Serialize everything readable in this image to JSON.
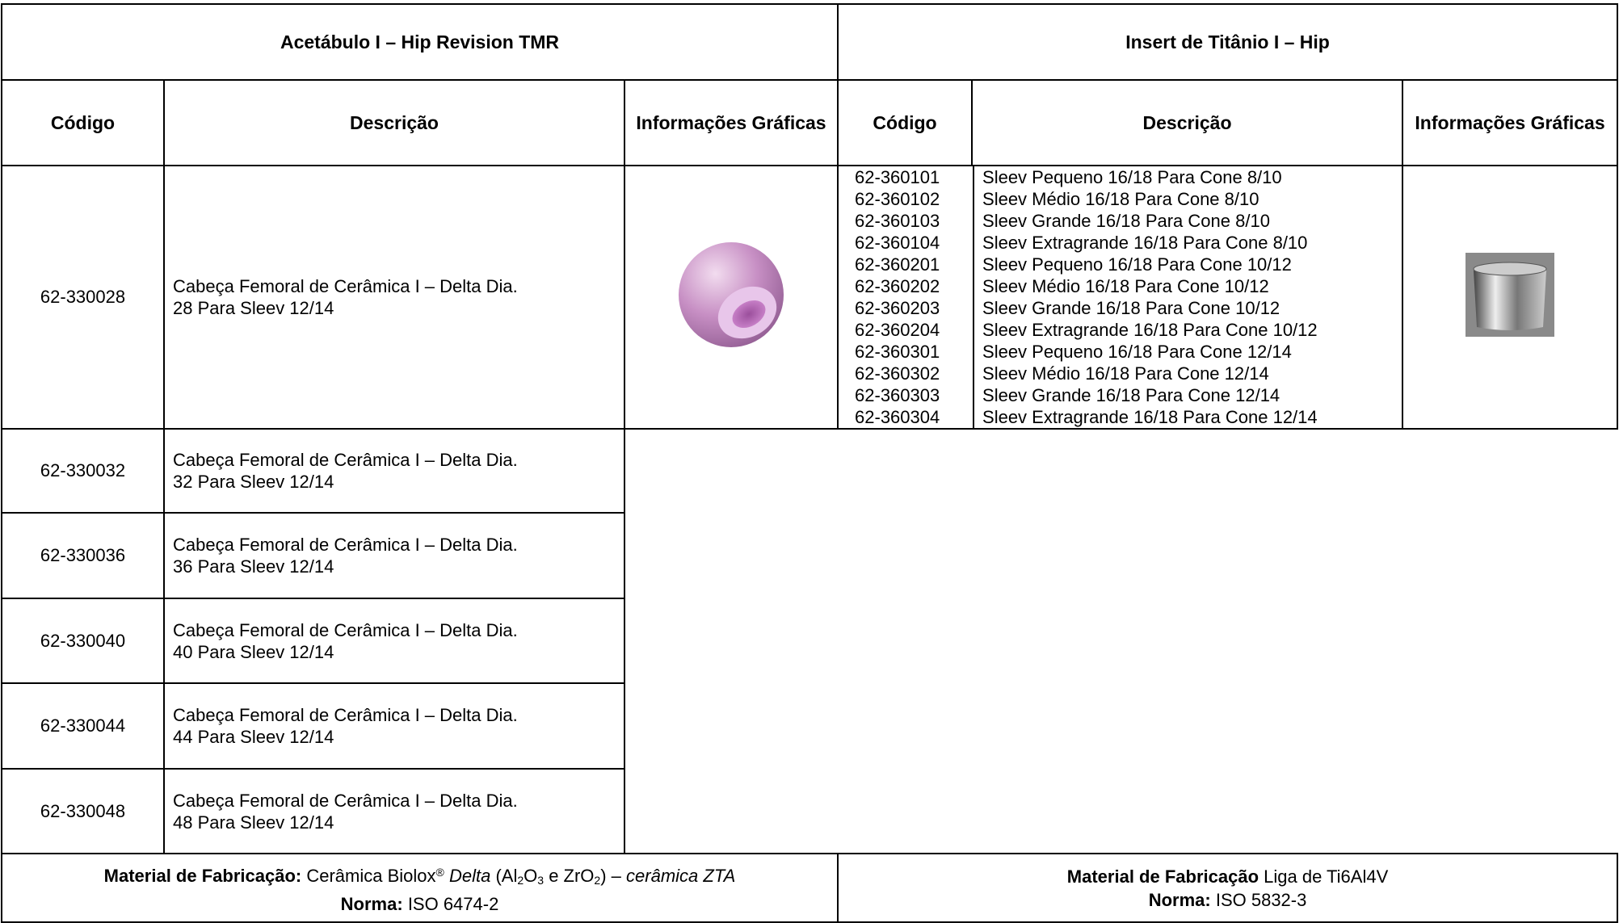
{
  "left": {
    "title": "Acetábulo I – Hip Revision TMR",
    "headers": [
      "Código",
      "Descrição",
      "Informações Gráficas"
    ],
    "rows": [
      {
        "code": "62-330028",
        "desc": [
          "Cabeça Femoral de Cerâmica I – Delta Dia.",
          "28 Para Sleev 12/14"
        ]
      },
      {
        "code": "62-330032",
        "desc": [
          "Cabeça Femoral de Cerâmica I – Delta Dia.",
          "32 Para Sleev 12/14"
        ]
      },
      {
        "code": "62-330036",
        "desc": [
          "Cabeça Femoral de Cerâmica I – Delta Dia.",
          "36 Para Sleev 12/14"
        ]
      },
      {
        "code": "62-330040",
        "desc": [
          "Cabeça Femoral de Cerâmica I – Delta Dia.",
          "40 Para Sleev 12/14"
        ]
      },
      {
        "code": "62-330044",
        "desc": [
          "Cabeça Femoral de Cerâmica I – Delta Dia.",
          "44 Para Sleev 12/14"
        ]
      },
      {
        "code": "62-330048",
        "desc": [
          "Cabeça Femoral de Cerâmica I – Delta Dia.",
          "48 Para Sleev 12/14"
        ]
      }
    ],
    "footer": {
      "material_label": "Material de Fabricação:",
      "parts": [
        "Cerâmica Biolox",
        "®",
        "Delta",
        "(Al",
        "2",
        "O",
        "3",
        "e ZrO",
        "2",
        ")",
        "–",
        "cerâmica ZTA"
      ],
      "norma_label": "Norma:",
      "norma": "ISO 6474-2"
    }
  },
  "right": {
    "title": "Insert de Titânio I – Hip",
    "headers": [
      "Código",
      "Descrição",
      "Informações Gráficas"
    ],
    "codes": [
      "62-360101",
      "62-360102",
      "62-360103",
      "62-360104",
      "62-360201",
      "62-360202",
      "62-360203",
      "62-360204",
      "62-360301",
      "62-360302",
      "62-360303",
      "62-360304"
    ],
    "descriptions": [
      "Sleev Pequeno 16/18 Para Cone 8/10",
      "Sleev Médio 16/18 Para Cone 8/10",
      "Sleev Grande 16/18 Para Cone 8/10",
      "Sleev Extragrande 16/18 Para Cone 8/10",
      "Sleev Pequeno 16/18 Para Cone 10/12",
      "Sleev Médio 16/18 Para Cone 10/12",
      "Sleev Grande 16/18 Para Cone 10/12",
      "Sleev Extragrande 16/18 Para Cone 10/12",
      "Sleev Pequeno 16/18 Para Cone 12/14",
      "Sleev Médio 16/18 Para Cone 12/14",
      "Sleev Grande 16/18 Para Cone 12/14",
      "Sleev Extragrande 16/18 Para Cone 12/14"
    ],
    "footer": {
      "material_label": "Material de Fabricação",
      "material": "Liga de Ti6Al4V",
      "norma_label": "Norma:",
      "norma": "ISO 5832-3"
    }
  }
}
